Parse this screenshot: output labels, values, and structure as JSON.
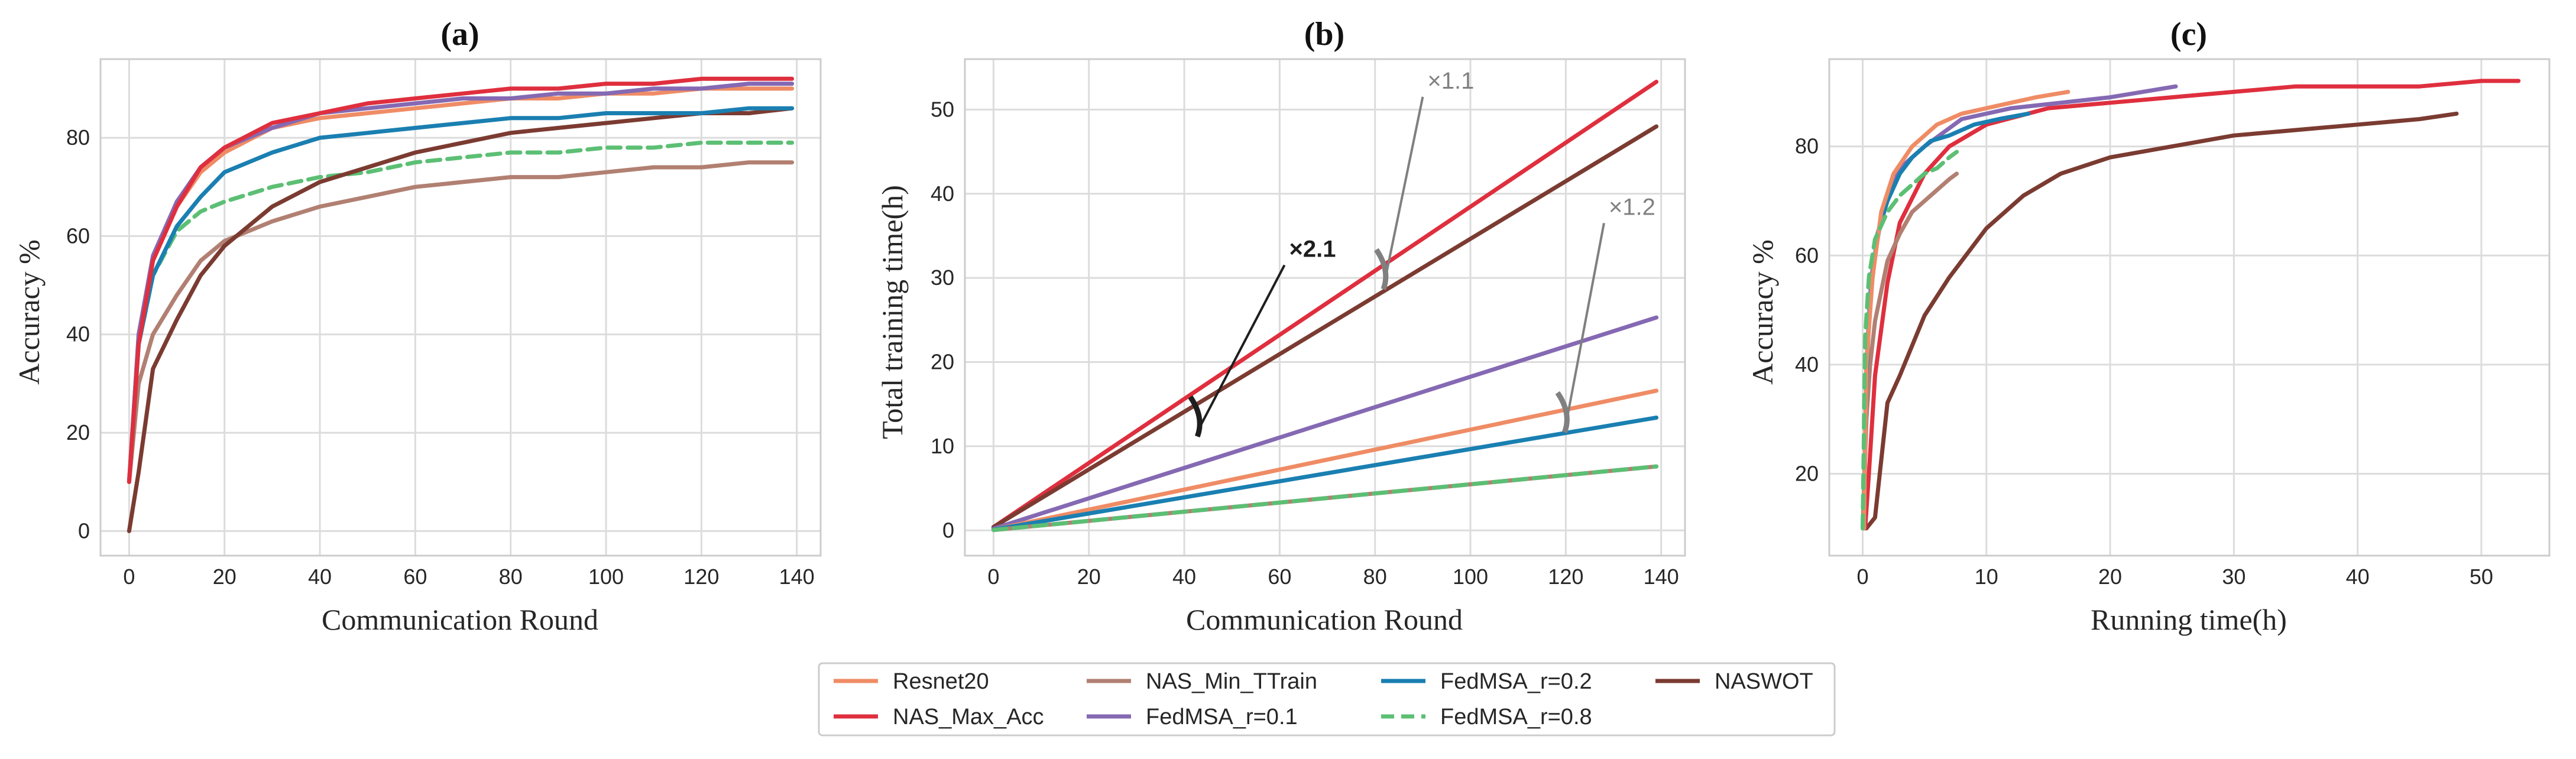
{
  "colors": {
    "Resnet20": "#ef8c65",
    "NAS_Max_Acc": "#df2f3e",
    "NAS_Min_TTrain": "#b18072",
    "FedMSA_r=0.1": "#8569b3",
    "FedMSA_r=0.2": "#1a7fb1",
    "FedMSA_r=0.8": "#5cbf74",
    "NASWOT": "#7b3b31"
  },
  "legend": [
    "Resnet20",
    "NAS_Max_Acc",
    "NAS_Min_TTrain",
    "FedMSA_r=0.1",
    "FedMSA_r=0.2",
    "FedMSA_r=0.8",
    "NASWOT"
  ],
  "chart_data": [
    {
      "type": "line",
      "title": "(a)",
      "xlabel": "Communication Round",
      "ylabel": "Accuracy %",
      "xlim": [
        -6,
        145
      ],
      "ylim": [
        -5,
        96
      ],
      "xticks": [
        0,
        20,
        40,
        60,
        80,
        100,
        120,
        140
      ],
      "yticks": [
        0,
        20,
        40,
        60,
        80
      ],
      "series": [
        {
          "name": "FedMSA_r=0.8",
          "x": [
            0,
            2,
            5,
            10,
            15,
            20,
            30,
            40,
            50,
            60,
            70,
            80,
            90,
            100,
            110,
            120,
            130,
            139
          ],
          "values": [
            10,
            38,
            52,
            61,
            65,
            67,
            70,
            72,
            73,
            75,
            76,
            77,
            77,
            78,
            78,
            79,
            79,
            79
          ]
        },
        {
          "name": "NAS_Min_TTrain",
          "x": [
            0,
            2,
            5,
            10,
            15,
            20,
            30,
            40,
            50,
            60,
            70,
            80,
            90,
            100,
            110,
            120,
            130,
            139
          ],
          "values": [
            10,
            30,
            40,
            48,
            55,
            59,
            63,
            66,
            68,
            70,
            71,
            72,
            72,
            73,
            74,
            74,
            75,
            75
          ]
        },
        {
          "name": "NASWOT",
          "x": [
            0,
            2,
            5,
            10,
            15,
            20,
            30,
            40,
            50,
            60,
            70,
            80,
            90,
            100,
            110,
            120,
            130,
            139
          ],
          "values": [
            0,
            12,
            33,
            43,
            52,
            58,
            66,
            71,
            74,
            77,
            79,
            81,
            82,
            83,
            84,
            85,
            85,
            86
          ]
        },
        {
          "name": "FedMSA_r=0.2",
          "x": [
            0,
            2,
            5,
            10,
            15,
            20,
            30,
            40,
            50,
            60,
            70,
            80,
            90,
            100,
            110,
            120,
            130,
            139
          ],
          "values": [
            10,
            38,
            52,
            62,
            68,
            73,
            77,
            80,
            81,
            82,
            83,
            84,
            84,
            85,
            85,
            85,
            86,
            86
          ]
        },
        {
          "name": "Resnet20",
          "x": [
            0,
            2,
            5,
            10,
            15,
            20,
            30,
            40,
            50,
            60,
            70,
            80,
            90,
            100,
            110,
            120,
            130,
            139
          ],
          "values": [
            10,
            40,
            55,
            66,
            73,
            77,
            82,
            84,
            85,
            86,
            87,
            88,
            88,
            89,
            89,
            90,
            90,
            90
          ]
        },
        {
          "name": "FedMSA_r=0.1",
          "x": [
            0,
            2,
            5,
            10,
            15,
            20,
            30,
            40,
            50,
            60,
            70,
            80,
            90,
            100,
            110,
            120,
            130,
            139
          ],
          "values": [
            10,
            40,
            56,
            67,
            74,
            78,
            82,
            85,
            86,
            87,
            88,
            88,
            89,
            89,
            90,
            90,
            91,
            91
          ]
        },
        {
          "name": "NAS_Max_Acc",
          "x": [
            0,
            2,
            5,
            10,
            15,
            20,
            30,
            40,
            50,
            60,
            70,
            80,
            90,
            100,
            110,
            120,
            130,
            139
          ],
          "values": [
            10,
            38,
            55,
            66,
            74,
            78,
            83,
            85,
            87,
            88,
            89,
            90,
            90,
            91,
            91,
            92,
            92,
            92
          ]
        }
      ]
    },
    {
      "type": "line",
      "title": "(b)",
      "xlabel": "Communication Round",
      "ylabel": "Total training time(h)",
      "xlim": [
        -6,
        145
      ],
      "ylim": [
        -3,
        56
      ],
      "xticks": [
        0,
        20,
        40,
        60,
        80,
        100,
        120,
        140
      ],
      "yticks": [
        0,
        10,
        20,
        30,
        40,
        50
      ],
      "series": [
        {
          "name": "NAS_Max_Acc",
          "x": [
            0,
            139
          ],
          "values": [
            0.4,
            53.3
          ]
        },
        {
          "name": "NASWOT",
          "x": [
            0,
            139
          ],
          "values": [
            0.4,
            48.0
          ]
        },
        {
          "name": "FedMSA_r=0.1",
          "x": [
            0,
            139
          ],
          "values": [
            0.2,
            25.3
          ]
        },
        {
          "name": "Resnet20",
          "x": [
            0,
            139
          ],
          "values": [
            0.1,
            16.6
          ]
        },
        {
          "name": "FedMSA_r=0.2",
          "x": [
            0,
            139
          ],
          "values": [
            0.1,
            13.4
          ]
        },
        {
          "name": "NAS_Min_TTrain",
          "x": [
            0,
            139
          ],
          "values": [
            0.05,
            7.6
          ]
        },
        {
          "name": "FedMSA_r=0.8",
          "x": [
            0,
            139
          ],
          "values": [
            0.05,
            7.6
          ]
        }
      ],
      "annotations": [
        {
          "text": "×2.1",
          "x": 62,
          "y": 32.5,
          "arrow_to_x": 43,
          "arrow_to_y": 12,
          "color": "#1e1e1e"
        },
        {
          "text": "×1.1",
          "x": 91,
          "y": 52.5,
          "arrow_to_x": 82,
          "arrow_to_y": 29.5,
          "color": "#808080"
        },
        {
          "text": "×1.2",
          "x": 129,
          "y": 37.5,
          "arrow_to_x": 120,
          "arrow_to_y": 12.5,
          "color": "#808080"
        }
      ]
    },
    {
      "type": "line",
      "title": "(c)",
      "xlabel": "Running time(h)",
      "ylabel": "Accuracy %",
      "xlim": [
        -2.7,
        55.5
      ],
      "ylim": [
        5,
        96
      ],
      "xticks": [
        0,
        10,
        20,
        30,
        40,
        50
      ],
      "yticks": [
        20,
        40,
        60,
        80
      ],
      "series": [
        {
          "name": "NASWOT",
          "x": [
            0.3,
            1,
            2,
            3,
            5,
            7,
            10,
            13,
            16,
            20,
            25,
            30,
            35,
            40,
            45,
            48
          ],
          "values": [
            10,
            12,
            33,
            38,
            49,
            56,
            65,
            71,
            75,
            78,
            80,
            82,
            83,
            84,
            85,
            86
          ]
        },
        {
          "name": "NAS_Max_Acc",
          "x": [
            0.2,
            0.5,
            1,
            2,
            3,
            5,
            7,
            10,
            15,
            20,
            25,
            30,
            35,
            40,
            45,
            50,
            53
          ],
          "values": [
            10,
            20,
            38,
            55,
            66,
            75,
            80,
            84,
            87,
            88,
            89,
            90,
            91,
            91,
            91,
            92,
            92
          ]
        },
        {
          "name": "NAS_Min_TTrain",
          "x": [
            0,
            0.3,
            0.6,
            1,
            2,
            3,
            4,
            5,
            6,
            7,
            7.6
          ],
          "values": [
            10,
            30,
            40,
            48,
            59,
            64,
            68,
            70,
            72,
            74,
            75
          ]
        },
        {
          "name": "FedMSA_r=0.1",
          "x": [
            0.1,
            0.3,
            0.7,
            1.5,
            3,
            5,
            8,
            12,
            16,
            20,
            25.3
          ],
          "values": [
            10,
            40,
            56,
            67,
            76,
            80,
            85,
            87,
            88,
            89,
            91
          ]
        },
        {
          "name": "FedMSA_r=0.2",
          "x": [
            0.1,
            0.3,
            0.6,
            1.2,
            2,
            3,
            4,
            5.5,
            7,
            9,
            11,
            13.4
          ],
          "values": [
            10,
            38,
            52,
            64,
            70,
            75,
            78,
            81,
            82,
            84,
            85,
            86
          ]
        },
        {
          "name": "Resnet20",
          "x": [
            0.1,
            0.3,
            0.8,
            1.5,
            2.5,
            4,
            6,
            8,
            10,
            12,
            14,
            16.6
          ],
          "values": [
            10,
            40,
            56,
            68,
            75,
            80,
            84,
            86,
            87,
            88,
            89,
            90
          ]
        },
        {
          "name": "FedMSA_r=0.8",
          "x": [
            0,
            0.2,
            0.5,
            1,
            2,
            3,
            4,
            5,
            6,
            7,
            7.6
          ],
          "values": [
            10,
            45,
            56,
            63,
            68,
            71,
            73,
            75,
            76,
            78,
            79
          ]
        }
      ]
    }
  ]
}
